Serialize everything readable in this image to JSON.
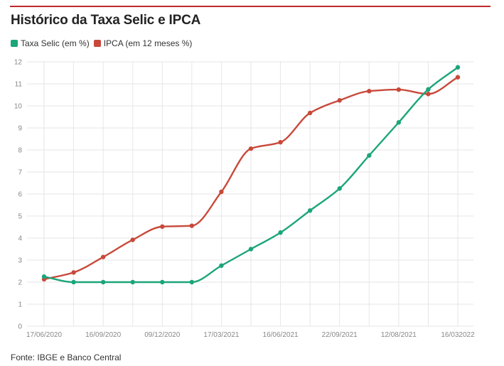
{
  "title": "Histórico da Taxa Selic e IPCA",
  "source": "Fonte: IBGE e Banco Central",
  "chart_data": {
    "type": "line",
    "title": "Histórico da Taxa Selic e IPCA",
    "xlabel": "",
    "ylabel": "",
    "ylim": [
      0,
      12
    ],
    "yticks": [
      0,
      1,
      2,
      3,
      4,
      5,
      6,
      7,
      8,
      9,
      10,
      11,
      12
    ],
    "grid": true,
    "legend_position": "top-left",
    "x_tick_labels": [
      "17/06/2020",
      "16/09/2020",
      "09/12/2020",
      "17/03/2021",
      "16/06/2021",
      "22/09/2021",
      "12/08/2021",
      "16/032022"
    ],
    "x_tick_label_indices": [
      0,
      2,
      4,
      6,
      8,
      10,
      12,
      14
    ],
    "series": [
      {
        "name": "Taxa Selic (em %)",
        "color": "#1ba57a",
        "values": [
          2.25,
          2.0,
          2.0,
          2.0,
          2.0,
          2.0,
          2.75,
          3.5,
          4.25,
          5.25,
          6.25,
          7.75,
          9.25,
          10.75,
          11.75
        ]
      },
      {
        "name": "IPCA (em 12 meses %)",
        "color": "#c8493a",
        "values": [
          2.13,
          2.44,
          3.14,
          3.92,
          4.52,
          4.56,
          6.1,
          8.06,
          8.35,
          9.68,
          10.25,
          10.67,
          10.74,
          10.54,
          11.3
        ]
      }
    ]
  }
}
